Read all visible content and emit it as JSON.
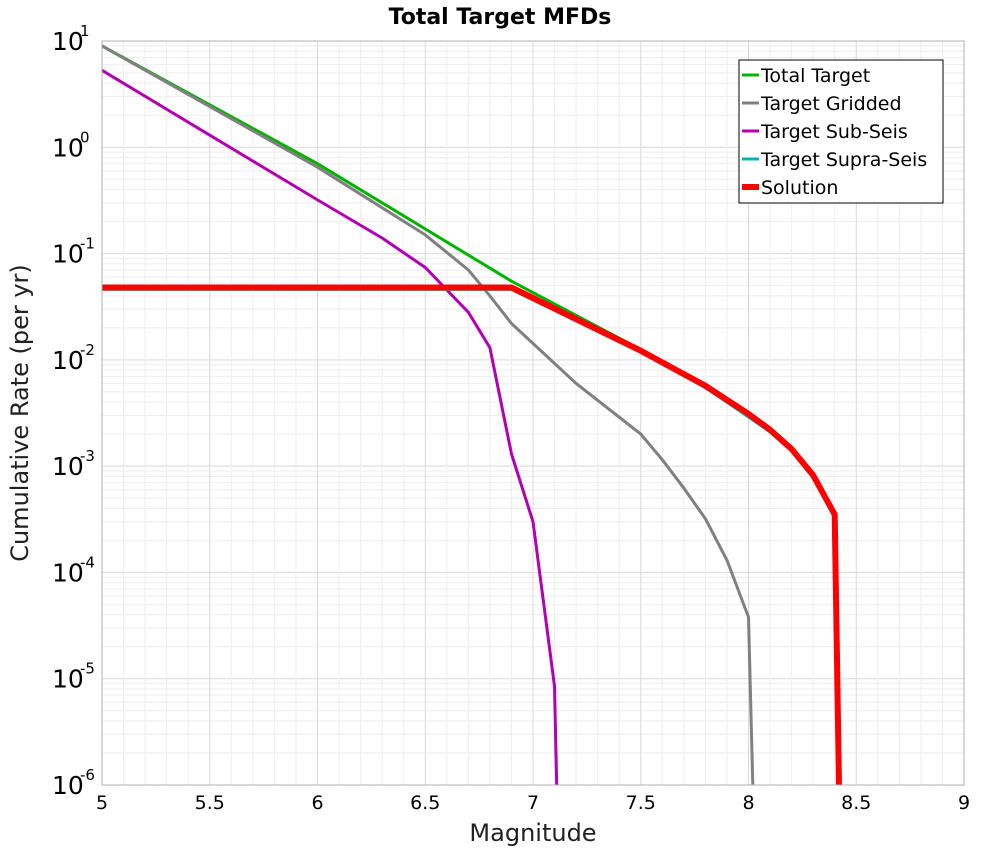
{
  "chart_data": {
    "type": "line",
    "title": "Total Target MFDs",
    "xlabel": "Magnitude",
    "ylabel": "Cumulative Rate (per yr)",
    "xlim": [
      5,
      9
    ],
    "ylim": [
      1e-06,
      10
    ],
    "yscale": "log",
    "grid": true,
    "legend_position": "top-right",
    "x_ticks": [
      "5",
      "5.5",
      "6",
      "6.5",
      "7",
      "7.5",
      "8",
      "8.5",
      "9"
    ],
    "y_ticks": [
      {
        "base": "10",
        "exp": "1"
      },
      {
        "base": "10",
        "exp": "0"
      },
      {
        "base": "10",
        "exp": "-1"
      },
      {
        "base": "10",
        "exp": "-2"
      },
      {
        "base": "10",
        "exp": "-3"
      },
      {
        "base": "10",
        "exp": "-4"
      },
      {
        "base": "10",
        "exp": "-5"
      },
      {
        "base": "10",
        "exp": "-6"
      }
    ],
    "series": [
      {
        "name": "Total Target",
        "color": "#00b400",
        "width": 3,
        "x": [
          5.0,
          6.0,
          6.9,
          7.5,
          7.8,
          8.0,
          8.1,
          8.2,
          8.3,
          8.4,
          8.42
        ],
        "y": [
          9.0,
          0.7,
          0.055,
          0.0125,
          0.0055,
          0.003,
          0.0021,
          0.0014,
          0.0008,
          0.00034,
          1e-06
        ]
      },
      {
        "name": "Target Gridded",
        "color": "#808080",
        "width": 3,
        "x": [
          5.0,
          6.0,
          6.5,
          6.7,
          6.8,
          6.9,
          7.2,
          7.5,
          7.6,
          7.7,
          7.8,
          7.9,
          8.0,
          8.02
        ],
        "y": [
          9.0,
          0.65,
          0.15,
          0.07,
          0.04,
          0.022,
          0.006,
          0.002,
          0.00115,
          0.00062,
          0.00032,
          0.00013,
          3.8e-05,
          1e-06
        ]
      },
      {
        "name": "Target Sub-Seis",
        "color": "#b400b4",
        "width": 3,
        "x": [
          5.0,
          5.5,
          6.0,
          6.3,
          6.5,
          6.7,
          6.8,
          6.9,
          7.0,
          7.1,
          7.11
        ],
        "y": [
          5.3,
          1.3,
          0.32,
          0.14,
          0.074,
          0.028,
          0.013,
          0.0013,
          0.0003,
          8.5e-06,
          1e-06
        ]
      },
      {
        "name": "Target Supra-Seis",
        "color": "#00b4b4",
        "width": 3,
        "x": [
          5.0,
          6.9,
          7.5,
          7.8,
          8.0,
          8.1,
          8.2,
          8.3,
          8.4,
          8.42
        ],
        "y": [
          0.046,
          0.046,
          0.0118,
          0.0055,
          0.0029,
          0.0021,
          0.0014,
          0.00078,
          0.00033,
          1e-06
        ]
      },
      {
        "name": "Solution",
        "color": "#ff0000",
        "width": 6,
        "x": [
          5.0,
          6.9,
          7.5,
          7.8,
          8.0,
          8.1,
          8.2,
          8.3,
          8.4,
          8.42
        ],
        "y": [
          0.048,
          0.048,
          0.0122,
          0.0057,
          0.0031,
          0.0022,
          0.00145,
          0.00082,
          0.00035,
          1e-06
        ]
      }
    ]
  }
}
